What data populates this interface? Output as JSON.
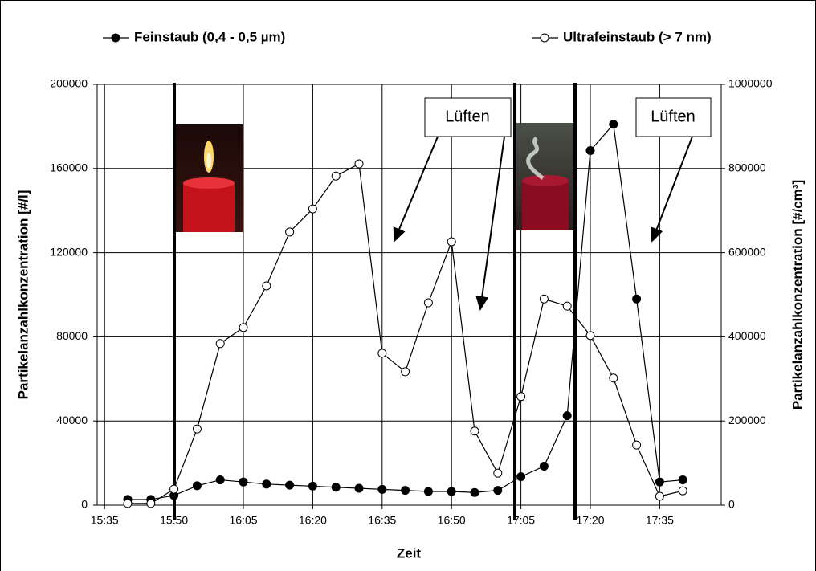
{
  "chart_data": {
    "type": "line",
    "x_label": "Zeit",
    "y_label": "Partikelanzahlkonzentration [#/l]",
    "y2_label": "Partikelanzahlkonzentration [#/cm³]",
    "x": [
      940,
      945,
      950,
      955,
      960,
      965,
      970,
      975,
      980,
      985,
      990,
      995,
      1000,
      1005,
      1010,
      1015,
      1020,
      1025,
      1030,
      1035,
      1040,
      1045,
      1050,
      1055,
      1060
    ],
    "xlim": [
      933.4,
      1068.3
    ],
    "xticks": [
      {
        "value": 935,
        "label": "15:35"
      },
      {
        "value": 950,
        "label": "15:50"
      },
      {
        "value": 965,
        "label": "16:05"
      },
      {
        "value": 980,
        "label": "16:20"
      },
      {
        "value": 995,
        "label": "16:35"
      },
      {
        "value": 1010,
        "label": "16:50"
      },
      {
        "value": 1025,
        "label": "17:05"
      },
      {
        "value": 1040,
        "label": "17:20"
      },
      {
        "value": 1055,
        "label": "17:35"
      }
    ],
    "ylim": [
      0,
      200000
    ],
    "yticks": [
      0,
      40000,
      80000,
      120000,
      160000,
      200000
    ],
    "y2lim": [
      0,
      1000000
    ],
    "y2ticks": [
      0,
      200000,
      400000,
      600000,
      800000,
      1000000
    ],
    "grid": true,
    "series": [
      {
        "name": "Feinstaub (0,4 - 0,5 µm)",
        "color": "#000000",
        "marker": "filled",
        "values": [
          2700,
          2700,
          4600,
          9200,
          12000,
          11000,
          10000,
          9500,
          9000,
          8500,
          8000,
          7500,
          7000,
          6500,
          6500,
          6000,
          7000,
          13500,
          18500,
          42500,
          168500,
          181000,
          98000,
          11000,
          12000
        ]
      },
      {
        "name": "Ultrafeinstaub (> 7 nm)",
        "color": "#000000",
        "marker": "open",
        "axis": "y2",
        "values": [
          4000,
          4000,
          38000,
          181000,
          384000,
          422000,
          521000,
          649000,
          704000,
          782000,
          811000,
          361000,
          317000,
          481000,
          626000,
          176000,
          76000,
          258000,
          490000,
          473000,
          403000,
          302000,
          143000,
          21000,
          34000
        ]
      }
    ],
    "annotations": [
      "Lüften",
      "Lüften"
    ]
  }
}
